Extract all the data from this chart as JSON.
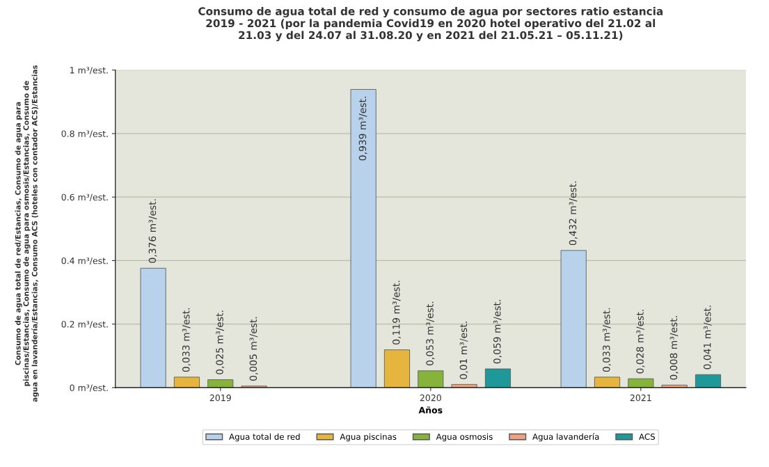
{
  "chart_data": {
    "type": "bar",
    "title": "Consumo de agua total de red y consumo de agua por sectores ratio estancia 2019 - 2021 (por la pandemia Covid19 en 2020 hotel operativo del 21.02 al 21.03 y del 24.07 al 31.08.20 y en 2021 del 21.05.21 – 05.11.21)",
    "xlabel": "Años",
    "ylabel": "Consumo de agua total de red/Estancias, Consumo de agua para piscinas/Estancias, Consumo de agua para osmosis/Estancias, Consumo de agua en lavandería/Estancias, Consumo ACS (hoteles con contador ACS)/Estancias",
    "categories": [
      "2019",
      "2020",
      "2021"
    ],
    "series": [
      {
        "name": "Agua total de red",
        "color": "#b8d2ec",
        "values": [
          0.376,
          0.939,
          0.432
        ],
        "value_labels": [
          "0,376 m³/est.",
          "0,939 m³/est.",
          "0,432 m³/est."
        ]
      },
      {
        "name": "Agua piscinas",
        "color": "#e6b53e",
        "values": [
          0.033,
          0.119,
          0.033
        ],
        "value_labels": [
          "0,033 m³/est.",
          "0,119 m³/est.",
          "0,033 m³/est."
        ]
      },
      {
        "name": "Agua osmosis",
        "color": "#86b43a",
        "values": [
          0.025,
          0.053,
          0.028
        ],
        "value_labels": [
          "0,025 m³/est.",
          "0,053 m³/est.",
          "0,028 m³/est."
        ]
      },
      {
        "name": "Agua lavandería",
        "color": "#eea282",
        "values": [
          0.005,
          0.01,
          0.008
        ],
        "value_labels": [
          "0,005 m³/est.",
          "0,01 m³/est.",
          "0,008 m³/est."
        ]
      },
      {
        "name": "ACS",
        "color": "#1e9898",
        "values": [
          null,
          0.059,
          0.041
        ],
        "value_labels": [
          null,
          "0,059 m³/est.",
          "0,041 m³/est."
        ]
      }
    ],
    "ylim": [
      0,
      1
    ],
    "yticks": [
      {
        "value": 0,
        "label": "0 m³/est."
      },
      {
        "value": 0.2,
        "label": "0.2 m³/est."
      },
      {
        "value": 0.4,
        "label": "0.4 m³/est."
      },
      {
        "value": 0.6,
        "label": "0.6 m³/est."
      },
      {
        "value": 0.8,
        "label": "0.8 m³/est."
      },
      {
        "value": 1,
        "label": "1 m³/est."
      }
    ],
    "grid": "y",
    "legend": "bottom"
  }
}
